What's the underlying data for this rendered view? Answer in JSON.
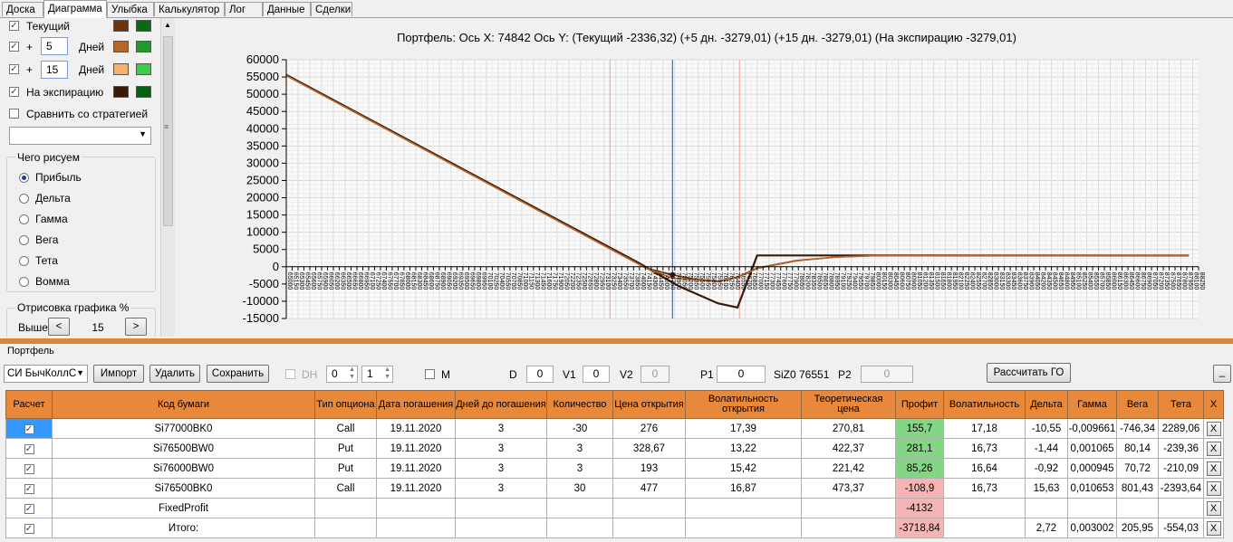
{
  "tabs": [
    "Доска",
    "Диаграмма",
    "Улыбка",
    "Калькулятор",
    "Лог",
    "Данные",
    "Сделки"
  ],
  "active_tab": "Диаграмма",
  "left": {
    "curves": [
      {
        "label": "Текущий",
        "checked": true,
        "colors": [
          "#6b3410",
          "#0a6a12"
        ]
      },
      {
        "plus": "+",
        "days": "5",
        "days_label": "Дней",
        "checked": true,
        "colors": [
          "#b8652a",
          "#1e9a28"
        ]
      },
      {
        "plus": "+",
        "days": "15",
        "days_label": "Дней",
        "checked": true,
        "colors": [
          "#f8b06a",
          "#38d048"
        ]
      },
      {
        "label": "На экспирацию",
        "checked": true,
        "colors": [
          "#3a1a06",
          "#056012"
        ]
      }
    ],
    "compare_label": "Сравнить со стратегией",
    "what_label": "Чего рисуем",
    "radios": [
      "Прибыль",
      "Дельта",
      "Гамма",
      "Вега",
      "Тета",
      "Вомма"
    ],
    "radio_selected": 0,
    "render_label": "Отрисовка графика %",
    "above_label": "Выше",
    "above_value": "15",
    "prev": "<",
    "next": ">"
  },
  "chart_title": "Портфель: Ось X: 74842 Ось Y:  (Текущий -2336,32)  (+5 дн. -3279,01)  (+15 дн. -3279,01)  (На экспирацию -3279,01)",
  "chart_data": {
    "type": "line",
    "title": "Портфель: Ось X: 74842 Ось Y:  (Текущий -2336,32)  (+5 дн. -3279,01)  (+15 дн. -3279,01)  (На экспирацию -3279,01)",
    "xlim": [
      65000,
      88250
    ],
    "ylim": [
      -15000,
      60000
    ],
    "y_ticks": [
      60000,
      55000,
      50000,
      45000,
      40000,
      35000,
      30000,
      25000,
      20000,
      15000,
      10000,
      5000,
      0,
      -5000,
      -10000,
      -15000
    ],
    "x_tick_start": 65000,
    "x_tick_step": 150,
    "x_tick_count": 156,
    "cursor_x": 74842,
    "markers_x": [
      73250,
      76550
    ],
    "grid": true,
    "series": [
      {
        "name": "На экспирацию",
        "color": "#3a1a06",
        "x": [
          65000,
          74000,
          75000,
          76000,
          76500,
          77000,
          88000
        ],
        "y": [
          55600,
          1000,
          -5600,
          -10600,
          -11800,
          3272,
          3272
        ]
      },
      {
        "name": "Текущий",
        "color": "#6b3410",
        "x": [
          65000,
          74200,
          74842,
          75400,
          76000,
          76500,
          77000,
          78000,
          79000,
          80000,
          88000
        ],
        "y": [
          55400,
          -500,
          -2336,
          -3600,
          -4200,
          -3000,
          -400,
          1800,
          2800,
          3200,
          3272
        ]
      },
      {
        "name": "+5 дн.",
        "color": "#b8652a",
        "x": [
          65000,
          74200,
          74842,
          75400,
          76000,
          76500,
          77000,
          78000,
          79000,
          80000,
          88000
        ],
        "y": [
          55400,
          -600,
          -3279,
          -3800,
          -4300,
          -3100,
          -500,
          1700,
          2800,
          3200,
          3272
        ]
      }
    ]
  },
  "portfolio": {
    "title": "Портфель",
    "strategy": "СИ БычКоллС",
    "import": "Импорт",
    "delete": "Удалить",
    "save": "Сохранить",
    "dh": "DH",
    "s1": "0",
    "s2": "1",
    "m": "M",
    "d_label": "D",
    "d_val": "0",
    "v1_label": "V1",
    "v1_val": "0",
    "v2_label": "V2",
    "v2_val": "0",
    "p1_label": "P1",
    "p1_val": "0",
    "sec_label": "SiZ0 76551",
    "p2_label": "P2",
    "p2_val": "0",
    "calc_go": "Рассчитать ГО",
    "min_btn": "_",
    "headers": [
      "Расчет",
      "Код бумаги",
      "Тип опциона",
      "Дата погашения",
      "Дней до погашения",
      "Количество",
      "Цена открытия",
      "Волатильность открытия",
      "Теоретическая цена",
      "Профит",
      "Волатильность",
      "Дельта",
      "Гамма",
      "Вега",
      "Тета",
      "X"
    ],
    "rows": [
      {
        "cells": [
          "Si77000BK0",
          "Call",
          "19.11.2020",
          "3",
          "-30",
          "276",
          "17,39",
          "270,81",
          "155,7",
          "17,18",
          "-10,55",
          "-0,009661",
          "-746,34",
          "2289,06"
        ],
        "profit": "pos"
      },
      {
        "cells": [
          "Si76500BW0",
          "Put",
          "19.11.2020",
          "3",
          "3",
          "328,67",
          "13,22",
          "422,37",
          "281,1",
          "16,73",
          "-1,44",
          "0,001065",
          "80,14",
          "-239,36"
        ],
        "profit": "pos"
      },
      {
        "cells": [
          "Si76000BW0",
          "Put",
          "19.11.2020",
          "3",
          "3",
          "193",
          "15,42",
          "221,42",
          "85,26",
          "16,64",
          "-0,92",
          "0,000945",
          "70,72",
          "-210,09"
        ],
        "profit": "pos"
      },
      {
        "cells": [
          "Si76500BK0",
          "Call",
          "19.11.2020",
          "3",
          "30",
          "477",
          "16,87",
          "473,37",
          "-108,9",
          "16,73",
          "15,63",
          "0,010653",
          "801,43",
          "-2393,64"
        ],
        "profit": "neg"
      },
      {
        "cells": [
          "FixedProfit",
          "",
          "",
          "",
          "",
          "",
          "",
          "",
          "-4132",
          "",
          "",
          "",
          "",
          ""
        ],
        "profit": "neg"
      },
      {
        "cells": [
          "Итого:",
          "",
          "",
          "",
          "",
          "",
          "",
          "",
          "-3718,84",
          "",
          "2,72",
          "0,003002",
          "205,95",
          "-554,03"
        ],
        "profit": "neg"
      }
    ],
    "x_symbol": "X",
    "check_symbol": "✓"
  }
}
